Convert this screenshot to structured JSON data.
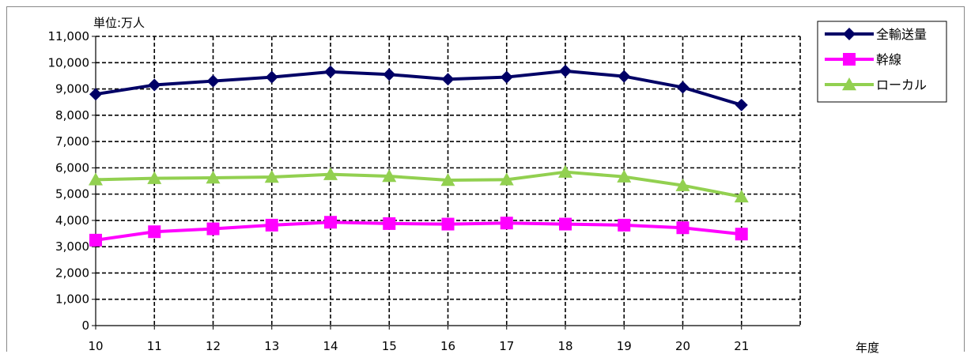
{
  "chart_data": {
    "type": "line",
    "unit_label": "単位:万人",
    "xlabel": "年度",
    "categories": [
      "10",
      "11",
      "12",
      "13",
      "14",
      "15",
      "16",
      "17",
      "18",
      "19",
      "20",
      "21"
    ],
    "ylim": [
      0,
      11000
    ],
    "yticks": [
      "0",
      "1,000",
      "2,000",
      "3,000",
      "4,000",
      "5,000",
      "6,000",
      "7,000",
      "8,000",
      "9,000",
      "10,000",
      "11,000"
    ],
    "grid": true,
    "legend_position": "top-right",
    "series": [
      {
        "name": "全輸送量",
        "color": "#000066",
        "marker": "diamond",
        "values": [
          8800,
          9150,
          9300,
          9450,
          9650,
          9550,
          9370,
          9450,
          9680,
          9480,
          9060,
          8390
        ]
      },
      {
        "name": "幹線",
        "color": "#ff00ff",
        "marker": "square",
        "values": [
          3250,
          3570,
          3680,
          3820,
          3930,
          3880,
          3860,
          3900,
          3860,
          3820,
          3720,
          3480
        ]
      },
      {
        "name": "ローカル",
        "color": "#92d050",
        "marker": "triangle",
        "values": [
          5550,
          5600,
          5620,
          5650,
          5750,
          5680,
          5530,
          5550,
          5840,
          5660,
          5330,
          4900
        ]
      }
    ]
  }
}
